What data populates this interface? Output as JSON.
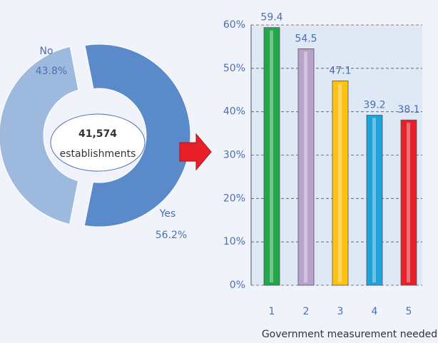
{
  "chart_data": [
    {
      "type": "pie",
      "categories": [
        "No",
        "Yes"
      ],
      "values": [
        43.8,
        56.2
      ],
      "value_labels": [
        "43.8%",
        "56.2%"
      ],
      "colors": [
        "#9db9de",
        "#5a8ac9"
      ],
      "center_value": "41,574",
      "center_label": "establishments"
    },
    {
      "type": "bar",
      "categories": [
        "1",
        "2",
        "3",
        "4",
        "5"
      ],
      "values": [
        59.4,
        54.5,
        47.1,
        39.2,
        38.1
      ],
      "colors": [
        "#22a84a",
        "#b8a2cc",
        "#ffc20e",
        "#1ea3dd",
        "#e8202a"
      ],
      "xlabel": "Government measurement needed",
      "ylim": [
        0,
        60
      ],
      "yticks": [
        {
          "value": 0,
          "label": "0%"
        },
        {
          "value": 10,
          "label": "10%"
        },
        {
          "value": 20,
          "label": "20%"
        },
        {
          "value": 30,
          "label": "30%"
        },
        {
          "value": 40,
          "label": "40%"
        },
        {
          "value": 50,
          "label": "50%"
        },
        {
          "value": 60,
          "label": "60%"
        }
      ],
      "grid": true
    }
  ]
}
